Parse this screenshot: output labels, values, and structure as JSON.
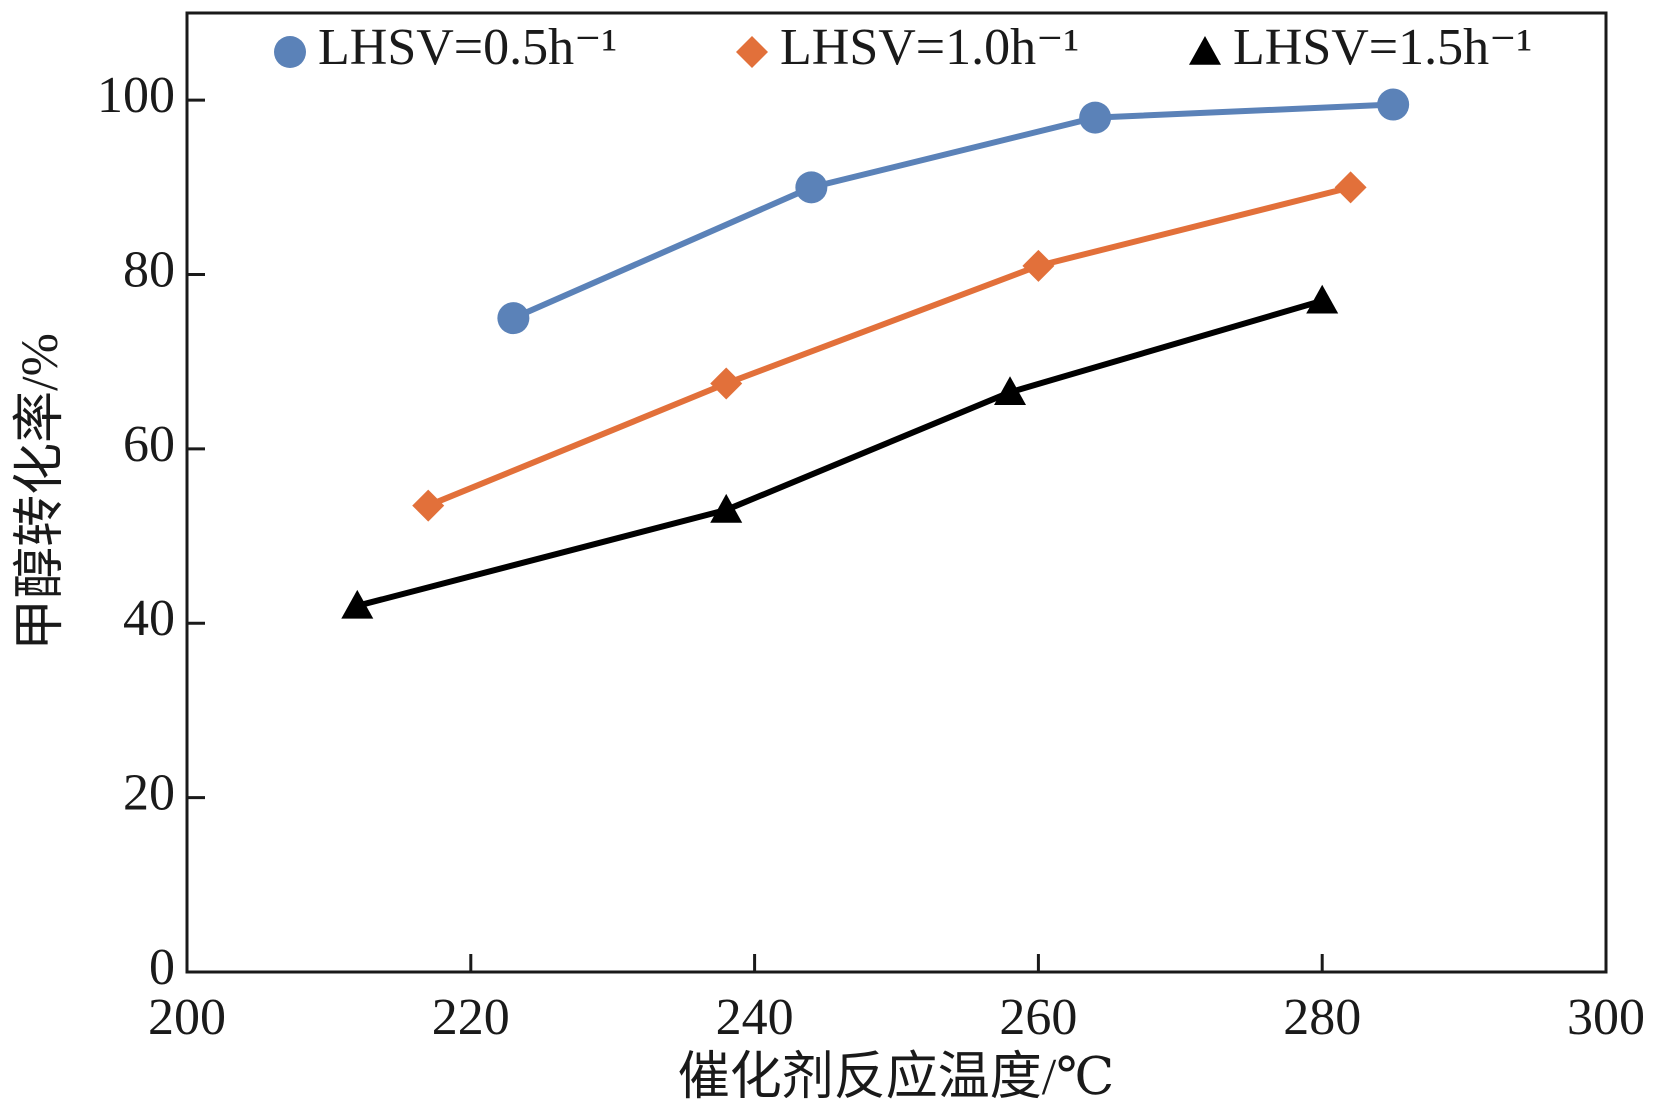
{
  "chart_data": {
    "type": "line",
    "xlabel": "催化剂反应温度/℃",
    "ylabel": "甲醇转化率/%",
    "xlim": [
      200,
      300
    ],
    "xticks": [
      200,
      220,
      240,
      260,
      280,
      300
    ],
    "ylim": [
      0,
      110
    ],
    "yticks": [
      0,
      20,
      40,
      60,
      80,
      100
    ],
    "legend": "top",
    "series": [
      {
        "name": "LHSV=0.5h⁻¹",
        "color": "#5b82b8",
        "marker": "circle",
        "x": [
          223,
          244,
          264,
          285
        ],
        "values": [
          75,
          90,
          98,
          99.5
        ]
      },
      {
        "name": "LHSV=1.0h⁻¹",
        "color": "#e2703a",
        "marker": "diamond",
        "x": [
          217,
          238,
          260,
          282
        ],
        "values": [
          53.5,
          67.5,
          81,
          90
        ]
      },
      {
        "name": "LHSV=1.5h⁻¹",
        "color": "#000000",
        "marker": "triangle",
        "x": [
          212,
          238,
          258,
          280
        ],
        "values": [
          42,
          53,
          66.5,
          77
        ]
      }
    ]
  }
}
